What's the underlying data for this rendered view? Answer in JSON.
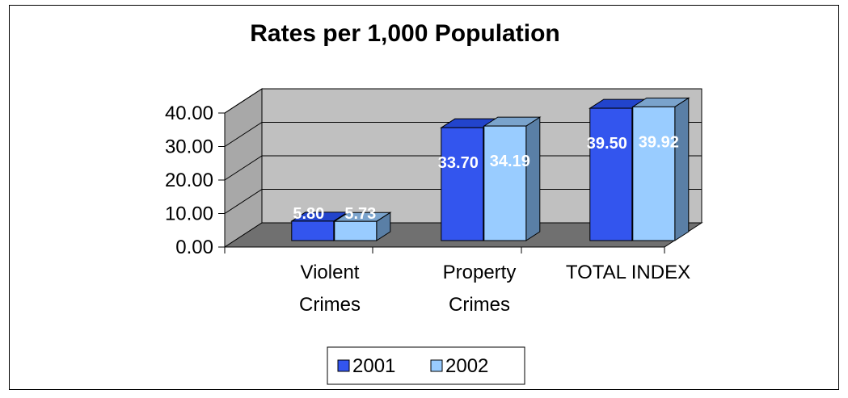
{
  "chart_data": {
    "type": "bar",
    "title": "Rates per 1,000 Population",
    "categories": [
      [
        "Violent",
        "Crimes"
      ],
      [
        "Property",
        "Crimes"
      ],
      [
        "TOTAL INDEX"
      ]
    ],
    "series": [
      {
        "name": "2001",
        "values": [
          5.8,
          33.7,
          39.5
        ],
        "labels": [
          "5.80",
          "33.70",
          "39.50"
        ]
      },
      {
        "name": "2002",
        "values": [
          5.73,
          34.19,
          39.92
        ],
        "labels": [
          "5.73",
          "34.19",
          "39.92"
        ]
      }
    ],
    "ylim": [
      0,
      40
    ],
    "yticks": [
      "0.00",
      "10.00",
      "20.00",
      "30.00",
      "40.00"
    ],
    "legend_position": "bottom",
    "grid": true
  },
  "colors": {
    "s2001_front": "#3355ee",
    "s2001_top": "#2244cc",
    "s2001_side": "#1a2f99",
    "s2002_front": "#99ccff",
    "s2002_top": "#7aa3cc",
    "s2002_side": "#5a7fa6",
    "back_wall": "#c0c0c0",
    "side_wall": "#a8a8a8",
    "floor": "#707070"
  }
}
